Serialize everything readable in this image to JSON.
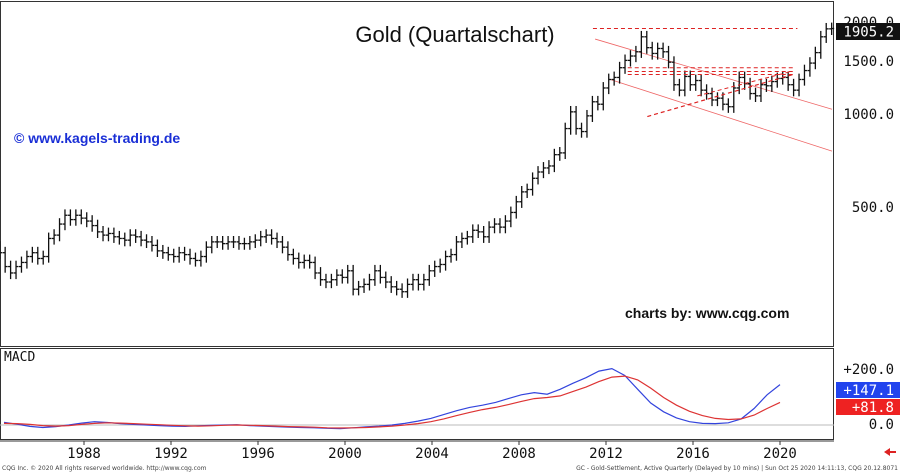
{
  "chart_data": [
    {
      "type": "ohlc",
      "title": "Gold (Quartalschart)",
      "watermark": "© www.kagels-trading.de",
      "credit": "charts by: www.cqg.com",
      "scale": "log",
      "y_ticks": [
        "2000.0",
        "1500.0",
        "1000.0",
        "500.0"
      ],
      "last_price_label": "1905.2",
      "last_price": 1905.2,
      "x_ticks": [
        "1988",
        "1992",
        "1996",
        "2000",
        "2004",
        "2008",
        "2012",
        "2016",
        "2020"
      ],
      "series": [
        {
          "year_from": 1983,
          "quarter_from": 1,
          "closes": [
            420,
            400,
            390,
            370,
            355,
            320,
            305,
            320,
            330,
            345,
            355,
            340,
            345,
            395,
            405,
            440,
            470,
            455,
            470,
            460,
            450,
            435,
            415,
            405,
            410,
            400,
            395,
            390,
            405,
            400,
            390,
            385,
            375,
            360,
            355,
            350,
            345,
            355,
            350,
            340,
            335,
            345,
            370,
            385,
            385,
            380,
            385,
            385,
            380,
            380,
            385,
            390,
            400,
            405,
            395,
            385,
            370,
            350,
            340,
            330,
            335,
            330,
            305,
            290,
            285,
            290,
            300,
            295,
            310,
            270,
            275,
            280,
            290,
            310,
            295,
            285,
            275,
            270,
            265,
            280,
            290,
            280,
            290,
            310,
            320,
            325,
            345,
            350,
            385,
            395,
            400,
            420,
            415,
            400,
            430,
            440,
            430,
            450,
            480,
            520,
            560,
            570,
            620,
            650,
            670,
            680,
            740,
            750,
            900,
            1020,
            900,
            880,
            990,
            1100,
            1080,
            1220,
            1300,
            1320,
            1420,
            1500,
            1550,
            1600,
            1790,
            1650,
            1580,
            1640,
            1600,
            1480,
            1250,
            1200,
            1330,
            1250,
            1290,
            1200,
            1170,
            1115,
            1130,
            1080,
            1060,
            1220,
            1320,
            1260,
            1170,
            1150,
            1250,
            1240,
            1280,
            1310,
            1320,
            1250,
            1200,
            1300,
            1390,
            1470,
            1590,
            1790,
            1900,
            1905
          ]
        }
      ],
      "annotations": [
        {
          "type": "horizontal",
          "value": 1905,
          "from": "2011",
          "to": "2020",
          "style": "dashed",
          "color": "#dd2222"
        },
        {
          "type": "horizontal-band",
          "values": [
            1420,
            1380
          ],
          "from": "2013",
          "to": "2020",
          "style": "dashed",
          "color": "#dd2222"
        },
        {
          "type": "rising-line",
          "from": [
            "2014",
            1030
          ],
          "to": [
            "2020",
            1340
          ],
          "style": "dashed",
          "color": "#dd2222"
        },
        {
          "type": "falling-channel",
          "color": "#ee6666"
        }
      ]
    },
    {
      "type": "line",
      "title": "MACD",
      "y_ticks": [
        "+200.0",
        "0.0"
      ],
      "badges": [
        {
          "label": "+147.1",
          "value": 147.1,
          "color": "#2244ee"
        },
        {
          "label": "+81.8",
          "value": 81.8,
          "color": "#ee2222"
        }
      ],
      "series": [
        {
          "color": "#3344dd",
          "values": [
            10,
            3,
            -5,
            -9,
            -6,
            0,
            7,
            12,
            9,
            5,
            2,
            0,
            -2,
            -4,
            -5,
            -3,
            -1,
            0,
            1,
            -2,
            -4,
            -6,
            -8,
            -9,
            -10,
            -12,
            -13,
            -10,
            -7,
            -4,
            0,
            6,
            14,
            24,
            38,
            52,
            64,
            72,
            82,
            96,
            110,
            118,
            112,
            130,
            152,
            172,
            196,
            205,
            180,
            130,
            80,
            48,
            26,
            12,
            6,
            5,
            8,
            22,
            60,
            110,
            147
          ]
        },
        {
          "color": "#dd3333",
          "values": [
            6,
            5,
            2,
            -2,
            -4,
            -2,
            2,
            6,
            8,
            7,
            5,
            3,
            1,
            -1,
            -3,
            -4,
            -3,
            -1,
            0,
            -1,
            -2,
            -4,
            -6,
            -7,
            -8,
            -10,
            -11,
            -10,
            -9,
            -7,
            -4,
            0,
            5,
            12,
            22,
            34,
            46,
            56,
            64,
            74,
            86,
            96,
            100,
            106,
            122,
            138,
            158,
            174,
            178,
            164,
            134,
            100,
            72,
            50,
            34,
            24,
            20,
            22,
            36,
            60,
            82
          ]
        }
      ]
    }
  ],
  "footer": {
    "left": "CQG Inc. © 2020 All rights reserved worldwide. http://www.cqg.com",
    "right": "GC - Gold-Settlement, Active Quarterly (Delayed by 10 mins) | Sun Oct 25 2020 14:11:13, CQG 20.12.8071"
  },
  "colors": {
    "bars": "#111111",
    "support": "#dd2222",
    "channel": "#ee6666",
    "badge_text": "#ffffff"
  },
  "icons": {
    "scroll_marker": "arrow-left-icon"
  }
}
